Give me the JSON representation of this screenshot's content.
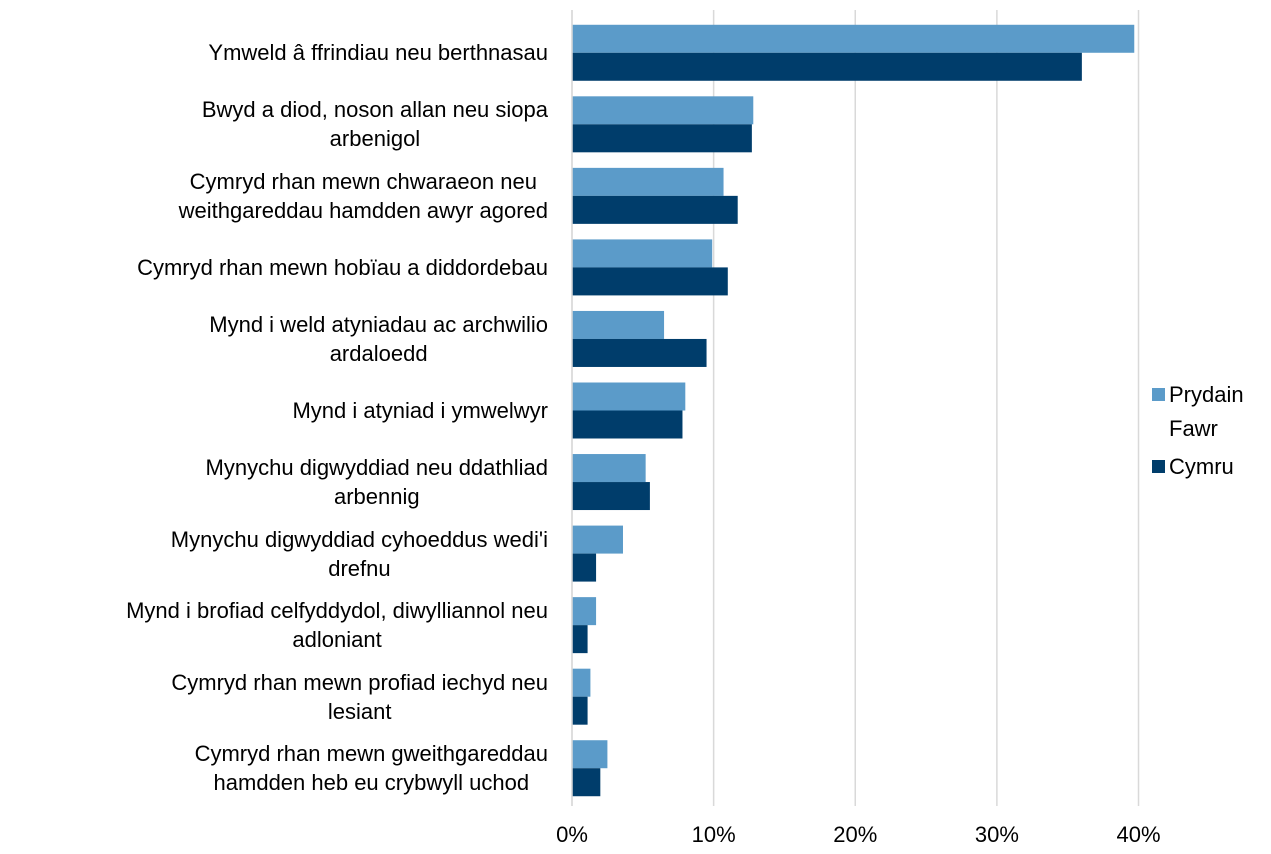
{
  "chart_data": {
    "type": "bar",
    "orientation": "horizontal",
    "categories": [
      "Ymweld â ffrindiau neu berthnasau",
      "Bwyd a diod, noson allan neu siopa\narbenigol",
      "Cymryd rhan mewn chwaraeon neu\nweithgareddau hamdden awyr agored",
      "Cymryd rhan mewn hobïau a diddordebau",
      "Mynd i weld atyniadau ac archwilio\nardaloedd",
      "Mynd i atyniad i ymwelwyr",
      "Mynychu digwyddiad neu ddathliad\narbennig",
      "Mynychu digwyddiad cyhoeddus wedi'i\ndrefnu",
      "Mynd i brofiad celfyddydol, diwylliannol neu\nadloniant",
      "Cymryd rhan mewn profiad iechyd neu\nlesiant",
      "Cymryd rhan mewn gweithgareddau\nhamdden heb eu crybwyll uchod"
    ],
    "series": [
      {
        "name": "Prydain Fawr",
        "color": "#5b9bc9",
        "values": [
          39.7,
          12.8,
          10.7,
          9.9,
          6.5,
          8.0,
          5.2,
          3.6,
          1.7,
          1.3,
          2.5
        ]
      },
      {
        "name": "Cymru",
        "color": "#003d6b",
        "values": [
          36.0,
          12.7,
          11.7,
          11.0,
          9.5,
          7.8,
          5.5,
          1.7,
          1.1,
          1.1,
          2.0
        ]
      }
    ],
    "xlim": [
      0,
      44.2
    ],
    "xticks": [
      {
        "value": 0,
        "label": "0%"
      },
      {
        "value": 10,
        "label": "10%"
      },
      {
        "value": 20,
        "label": "20%"
      },
      {
        "value": 30,
        "label": "30%"
      },
      {
        "value": 40,
        "label": "40%"
      }
    ],
    "grid": true,
    "legend": "right"
  }
}
